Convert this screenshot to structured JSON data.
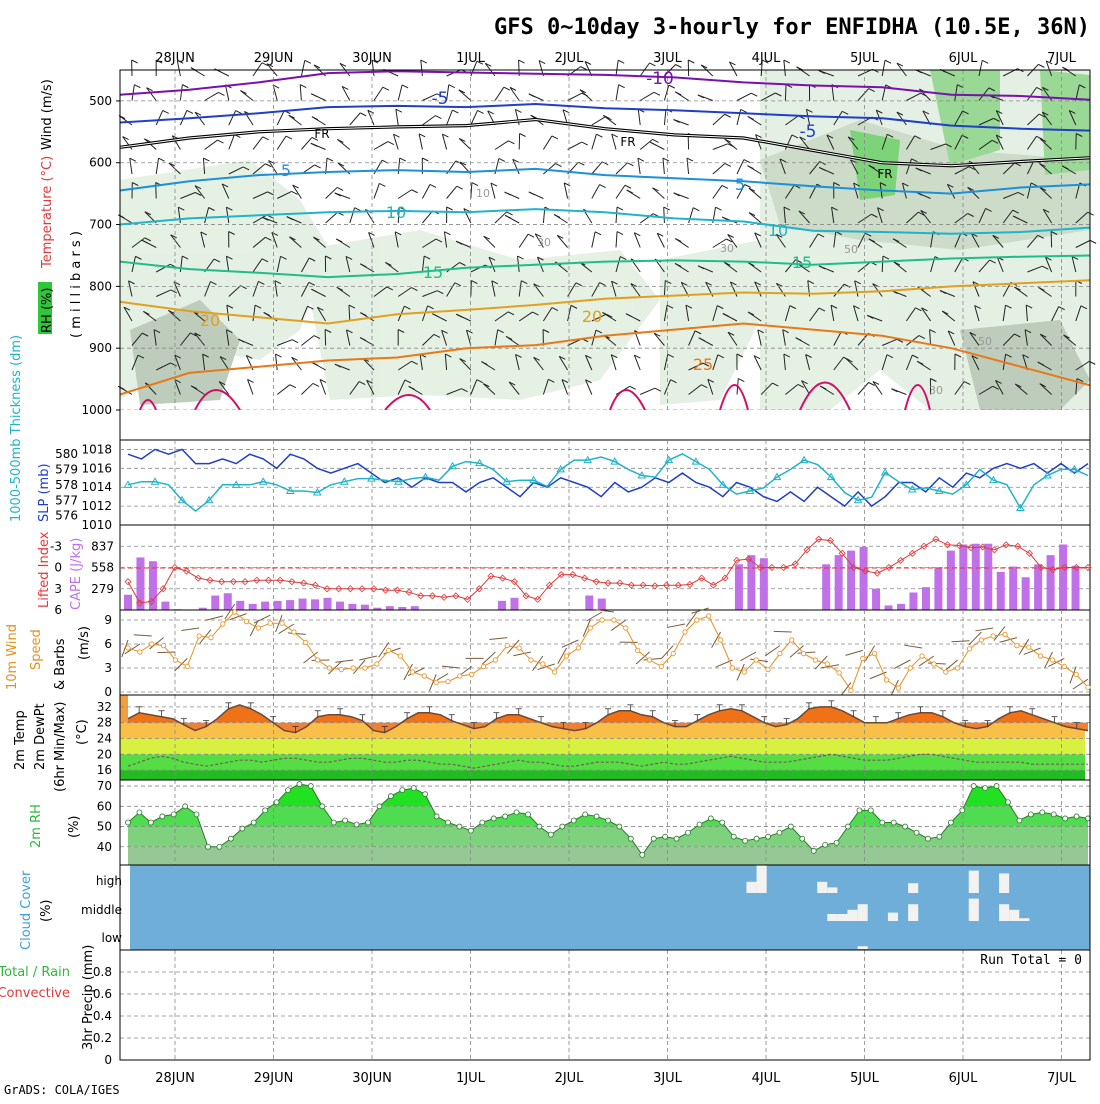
{
  "header": {
    "title": "GFS 0~10day 3-hourly for ENFIDHA (10.5E, 36N)",
    "footer": "GrADS: COLA/IGES"
  },
  "dates": [
    "28JUN",
    "29JUN",
    "30JUN",
    "1JUL",
    "2JUL",
    "3JUL",
    "4JUL",
    "5JUL",
    "6JUL",
    "7JUL"
  ],
  "chart_data": [
    {
      "id": "upper_air",
      "type": "heatmap",
      "ylabel_parts": [
        "RH (%)",
        "Temperature (°C)",
        "Wind (m/s)",
        "( m i l l i b a r s )"
      ],
      "yticks": [
        500,
        600,
        700,
        800,
        900,
        1000
      ],
      "ylim": [
        450,
        1000
      ],
      "contour_labels": [
        "-10",
        "-5",
        "-5",
        "FR",
        "FR",
        "FR",
        "5",
        "5",
        "10",
        "10",
        "15",
        "15",
        "20",
        "20",
        "25",
        "10",
        "30",
        "30",
        "50",
        "50",
        "30"
      ],
      "isotherms": [
        {
          "label": "-10",
          "color": "#7a10b0",
          "values": [
            490,
            482,
            470,
            455,
            452,
            454,
            456,
            458,
            462,
            470,
            475,
            478,
            490,
            492,
            498
          ]
        },
        {
          "label": "-5",
          "color": "#1f3fc8",
          "values": [
            535,
            528,
            520,
            510,
            508,
            510,
            505,
            512,
            515,
            520,
            525,
            528,
            540,
            545,
            548
          ]
        },
        {
          "label": "FR",
          "color": "#000000",
          "values": [
            575,
            560,
            550,
            545,
            542,
            540,
            530,
            545,
            555,
            560,
            580,
            600,
            605,
            598,
            592
          ]
        },
        {
          "label": "5",
          "color": "#1e90d8",
          "values": [
            645,
            630,
            620,
            615,
            612,
            615,
            610,
            620,
            625,
            630,
            638,
            645,
            650,
            640,
            635
          ]
        },
        {
          "label": "10",
          "color": "#20b4c8",
          "values": [
            700,
            690,
            685,
            680,
            678,
            680,
            675,
            680,
            690,
            695,
            710,
            712,
            715,
            712,
            705
          ]
        },
        {
          "label": "15",
          "color": "#1ebe8c",
          "values": [
            760,
            772,
            778,
            785,
            780,
            770,
            765,
            760,
            758,
            760,
            765,
            760,
            755,
            752,
            750
          ]
        },
        {
          "label": "20",
          "color": "#e0a020",
          "values": [
            825,
            840,
            850,
            860,
            845,
            838,
            830,
            820,
            815,
            810,
            812,
            808,
            800,
            795,
            790
          ]
        },
        {
          "label": "25",
          "color": "#e87818",
          "values": [
            975,
            940,
            930,
            920,
            915,
            900,
            895,
            880,
            870,
            860,
            870,
            880,
            900,
            930,
            960
          ]
        }
      ]
    },
    {
      "id": "slp_thickness",
      "type": "line",
      "ylabel_left": "1000-500mb Thickness (dm)",
      "ylabel_right": "SLP (mb)",
      "yticks_thickness": [
        576,
        577,
        578,
        579,
        580
      ],
      "yticks_slp": [
        1010,
        1012,
        1014,
        1016,
        1018
      ],
      "series": [
        {
          "name": "SLP (mb)",
          "color": "#1f3fc8",
          "ylim": [
            1010,
            1019
          ],
          "values": [
            1017.5,
            1017,
            1018,
            1017.5,
            1018,
            1016.5,
            1016.5,
            1017,
            1016.5,
            1017.5,
            1017,
            1016,
            1017.5,
            1017,
            1016,
            1015.5,
            1016,
            1016.5,
            1015.5,
            1014.5,
            1015,
            1014,
            1015,
            1014.5,
            1014.5,
            1013.5,
            1014.5,
            1015,
            1014,
            1013,
            1014.5,
            1014,
            1015,
            1014.5,
            1014,
            1013,
            1014.5,
            1013.5,
            1014,
            1015,
            1014.5,
            1015.5,
            1014.5,
            1014,
            1013,
            1014.5,
            1014,
            1013,
            1012.5,
            1013.5,
            1012.5,
            1014,
            1013,
            1012,
            1013.5,
            1012,
            1013,
            1014.5,
            1014.5,
            1013.5,
            1015,
            1014,
            1015.5,
            1015,
            1016,
            1016.5,
            1016,
            1016.5,
            1015.5,
            1016.5,
            1015.5,
            1016.5
          ]
        },
        {
          "name": "1000-500mb Thickness (dm)",
          "color": "#20b4c8",
          "ylim": [
            575.4,
            580.9
          ],
          "values": [
            578,
            578.2,
            578.2,
            578,
            577,
            576.3,
            577,
            578,
            578,
            578,
            578.2,
            578,
            577.6,
            577.6,
            577.5,
            578,
            578.2,
            578.4,
            578.4,
            578.3,
            578.2,
            578.4,
            578.5,
            578.3,
            579.2,
            579.5,
            579.4,
            579,
            578.2,
            578.3,
            578.3,
            577.9,
            579,
            579.6,
            579.6,
            579.8,
            579.5,
            579,
            578.6,
            578.5,
            579.6,
            580,
            579.5,
            579,
            578,
            577.4,
            577.6,
            577.8,
            578.5,
            579,
            579.6,
            579.3,
            578.5,
            577.5,
            577,
            577.2,
            578.8,
            578.2,
            577.7,
            577.8,
            577.6,
            577.4,
            578,
            579,
            578.3,
            578,
            576.5,
            578,
            578.6,
            579,
            579,
            578.6
          ]
        }
      ]
    },
    {
      "id": "cape_li",
      "type": "bar",
      "ylabel_left": "Lifted Index",
      "ylabel_right": "CAPE (J/kg)",
      "yticks_li": [
        "-3",
        "0",
        "3",
        "6"
      ],
      "yticks_cape": [
        "279",
        "558",
        "837"
      ],
      "cape_ylim": [
        0,
        1116
      ],
      "li_ylim": [
        6,
        -6
      ],
      "cape_values": [
        200,
        690,
        640,
        110,
        10,
        0,
        30,
        190,
        220,
        120,
        80,
        110,
        120,
        130,
        150,
        140,
        160,
        110,
        80,
        70,
        30,
        50,
        40,
        50,
        0,
        0,
        0,
        0,
        0,
        0,
        120,
        160,
        10,
        0,
        0,
        0,
        0,
        190,
        150,
        0,
        0,
        0,
        0,
        0,
        0,
        0,
        0,
        0,
        0,
        600,
        720,
        680,
        0,
        0,
        0,
        0,
        600,
        720,
        780,
        830,
        280,
        60,
        80,
        230,
        300,
        560,
        780,
        860,
        870,
        870,
        500,
        570,
        430,
        600,
        720,
        860,
        580,
        0
      ],
      "li_values": [
        2,
        5,
        4.8,
        3,
        0,
        0.5,
        1.5,
        1.8,
        2,
        2,
        2,
        1.8,
        1.8,
        1.8,
        2,
        2.2,
        2.5,
        3,
        3,
        3,
        3,
        3,
        3.2,
        3.2,
        3.5,
        4,
        4,
        4.2,
        4,
        4.5,
        3,
        1.2,
        1.5,
        2,
        4,
        4.5,
        2.5,
        1,
        1,
        1.5,
        2,
        2.2,
        2.2,
        2.5,
        2.5,
        2.6,
        2.5,
        2.5,
        2.4,
        1.5,
        2.5,
        1.5,
        -1,
        -1.2,
        0,
        0,
        0,
        -0.5,
        -2.5,
        -4,
        -3.8,
        -2,
        0,
        0.5,
        0.8,
        0,
        -1,
        -2,
        -3,
        -4,
        -3.2,
        -3.1,
        -2.8,
        -2.9,
        -2.5,
        -3.2,
        -3,
        -2,
        0,
        0.3,
        0,
        0,
        0
      ]
    },
    {
      "id": "wind10m",
      "type": "line",
      "ylabel": "10m Wind Speed & Barbs (m/s)",
      "yticks": [
        0,
        3,
        6,
        9
      ],
      "ylim": [
        0,
        10
      ],
      "values": [
        5.5,
        5,
        6,
        5.8,
        4,
        3.2,
        7,
        6.8,
        8.5,
        10,
        8.8,
        8,
        8.6,
        8.6,
        7.5,
        6.2,
        4,
        3,
        2.8,
        3,
        3,
        3.5,
        5.2,
        4.5,
        2.5,
        2,
        1.2,
        1.3,
        2,
        2.2,
        3.2,
        4,
        5.8,
        5.5,
        4,
        3.5,
        2.5,
        4.5,
        5.5,
        8,
        9,
        9,
        8,
        5.2,
        4,
        3.2,
        4.8,
        7.5,
        9,
        9.5,
        6.5,
        3,
        2.5,
        4,
        2.8,
        4.8,
        6.5,
        4.8,
        4,
        3.5,
        2.4,
        0.2,
        4.2,
        4.8,
        1.5,
        0.5,
        3,
        4.5,
        3.5,
        2.5,
        3,
        5.4,
        6.5,
        7,
        7.2,
        5.8,
        5.6,
        4.5,
        4,
        3.2,
        2.2,
        0.6
      ]
    },
    {
      "id": "temp2m",
      "type": "area",
      "ylabel": "2m Temp 2m DewPt (6hr Min/Max) (°C)",
      "yticks": [
        16,
        20,
        24,
        28,
        32
      ],
      "ylim": [
        13.5,
        35
      ],
      "temp": [
        29,
        30.5,
        30,
        29.5,
        29,
        27.5,
        26,
        27,
        29,
        31.5,
        32.5,
        31.5,
        30,
        28,
        26,
        25.5,
        27,
        29.5,
        30,
        30,
        29.5,
        28.5,
        26,
        25.5,
        27,
        29,
        30.5,
        30.5,
        30,
        28.5,
        27.5,
        26.5,
        27,
        29,
        30,
        30,
        29,
        28,
        27,
        26.5,
        26,
        26.5,
        28,
        30,
        31,
        31,
        30,
        29.5,
        28,
        27,
        27,
        28.5,
        30,
        31,
        31.5,
        31,
        29.5,
        28,
        27,
        27.5,
        29,
        31.5,
        32,
        32,
        31,
        29.5,
        28,
        28,
        28,
        29,
        30,
        30.5,
        30.5,
        29.5,
        28,
        27,
        26.5,
        27,
        29,
        30.5,
        31,
        30,
        29,
        28,
        27,
        26.5,
        26
      ],
      "dewpt": [
        17,
        18,
        19,
        19.5,
        19,
        18,
        17.5,
        17,
        17.5,
        18,
        18.5,
        18.5,
        18,
        18.5,
        19,
        19,
        18.5,
        18,
        18,
        18.5,
        19,
        19,
        18.5,
        18,
        18,
        18.5,
        18.5,
        18,
        17.5,
        17.5,
        17,
        16.5,
        17,
        17.5,
        18,
        18.5,
        18,
        18,
        17.5,
        17,
        17,
        17.5,
        18,
        18,
        18,
        17.5,
        17,
        17.5,
        18,
        17.5,
        17.5,
        18,
        18.5,
        19,
        19.5,
        19,
        18.5,
        18,
        18,
        18,
        18.5,
        19,
        19.5,
        20,
        19.5,
        19,
        18.5,
        18.5,
        18.5,
        19,
        19.5,
        20,
        20,
        19.5,
        19,
        18.5,
        18,
        18,
        18,
        18,
        18,
        17.5,
        17.5,
        17.5,
        17.5,
        17.5,
        17.5
      ]
    },
    {
      "id": "rh2m",
      "type": "area",
      "ylabel": "2m RH (%)",
      "yticks": [
        40,
        50,
        60,
        70
      ],
      "ylim": [
        31,
        73
      ],
      "values": [
        52,
        57,
        52,
        55,
        56,
        60,
        56,
        40,
        40,
        44,
        49,
        52,
        58,
        62,
        68,
        71,
        70,
        60,
        52,
        53,
        51,
        52,
        60,
        65,
        68,
        69,
        66,
        55,
        52,
        50,
        48,
        52,
        54,
        55,
        57,
        56,
        50,
        46,
        50,
        53,
        56,
        55,
        53,
        50,
        44,
        36,
        44,
        45,
        44,
        47,
        51,
        54,
        52,
        45,
        43,
        44,
        45,
        47,
        50,
        44,
        38,
        41,
        42,
        50,
        58,
        58,
        52,
        52,
        50,
        47,
        44,
        45,
        52,
        58,
        70,
        69,
        70,
        62,
        53,
        56,
        57,
        56,
        54,
        55,
        54
      ]
    },
    {
      "id": "cloud",
      "type": "bar",
      "ylabel": "Cloud Cover (%)",
      "yticks": [
        "high",
        "middle",
        "low"
      ],
      "layers": [
        {
          "name": "high",
          "blocks": [
            [
              62,
              63,
              40
            ],
            [
              63,
              64,
              100
            ],
            [
              69,
              70,
              40
            ],
            [
              70,
              71,
              20
            ],
            [
              78,
              79,
              35
            ],
            [
              84,
              85,
              80
            ],
            [
              87,
              88,
              70
            ]
          ]
        },
        {
          "name": "middle",
          "blocks": [
            [
              70,
              71,
              25
            ],
            [
              71,
              72,
              25
            ],
            [
              72,
              73,
              40
            ],
            [
              73,
              74,
              60
            ],
            [
              76,
              77,
              30
            ],
            [
              78,
              79,
              60
            ],
            [
              84,
              85,
              80
            ],
            [
              87,
              88,
              60
            ],
            [
              88,
              89,
              40
            ],
            [
              89,
              90,
              10
            ]
          ]
        },
        {
          "name": "low",
          "blocks": [
            [
              73,
              74,
              10
            ]
          ]
        }
      ]
    },
    {
      "id": "precip",
      "type": "bar",
      "ylabel_parts": [
        "Total / Rain",
        "Convective",
        "3hr Precip (mm)"
      ],
      "yticks": [
        "0",
        "0.2",
        "0.4",
        "0.6",
        "0.8"
      ],
      "ylim": [
        0,
        1
      ],
      "run_total": "Run Total = 0",
      "values": []
    }
  ]
}
